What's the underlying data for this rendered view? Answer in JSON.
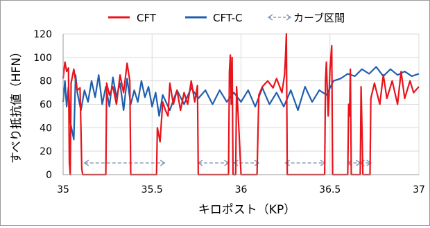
{
  "chart_data": {
    "type": "line",
    "xlabel": "キロポスト（KP）",
    "ylabel": "すべり抵抗値（HFN）",
    "xlim": [
      35,
      37
    ],
    "ylim": [
      0,
      120
    ],
    "x_ticks": [
      35,
      35.5,
      36,
      36.5,
      37
    ],
    "x_tick_labels": [
      "35",
      "35.5",
      "36",
      "36.5",
      "37"
    ],
    "y_ticks": [
      0,
      20,
      40,
      60,
      80,
      100,
      120
    ],
    "y_tick_labels": [
      "0",
      "20",
      "40",
      "60",
      "80",
      "100",
      "120"
    ],
    "grid": true,
    "legend_position": "top",
    "legend": [
      "CFT",
      "CFT-C",
      "カーブ区間"
    ],
    "series": [
      {
        "name": "CFT",
        "color": "#e8131b",
        "points": [
          [
            35.0,
            82
          ],
          [
            35.01,
            96
          ],
          [
            35.02,
            88
          ],
          [
            35.03,
            91
          ],
          [
            35.035,
            10
          ],
          [
            35.04,
            0
          ],
          [
            35.045,
            78
          ],
          [
            35.06,
            90
          ],
          [
            35.07,
            80
          ],
          [
            35.08,
            72
          ],
          [
            35.095,
            74
          ],
          [
            35.1,
            40
          ],
          [
            35.105,
            5
          ],
          [
            35.11,
            0
          ],
          [
            35.24,
            0
          ],
          [
            35.245,
            78
          ],
          [
            35.26,
            68
          ],
          [
            35.28,
            75
          ],
          [
            35.3,
            60
          ],
          [
            35.32,
            85
          ],
          [
            35.34,
            70
          ],
          [
            35.36,
            95
          ],
          [
            35.375,
            80
          ],
          [
            35.38,
            0
          ],
          [
            35.525,
            0
          ],
          [
            35.53,
            40
          ],
          [
            35.545,
            28
          ],
          [
            35.56,
            62
          ],
          [
            35.575,
            55
          ],
          [
            35.59,
            50
          ],
          [
            35.6,
            78
          ],
          [
            35.62,
            60
          ],
          [
            35.64,
            72
          ],
          [
            35.66,
            55
          ],
          [
            35.68,
            70
          ],
          [
            35.7,
            60
          ],
          [
            35.72,
            80
          ],
          [
            35.74,
            62
          ],
          [
            35.755,
            76
          ],
          [
            35.76,
            0
          ],
          [
            35.93,
            0
          ],
          [
            35.935,
            88
          ],
          [
            35.94,
            102
          ],
          [
            35.945,
            60
          ],
          [
            35.95,
            100
          ],
          [
            35.955,
            0
          ],
          [
            35.96,
            0
          ],
          [
            35.97,
            0
          ],
          [
            35.975,
            75
          ],
          [
            35.985,
            48
          ],
          [
            36.0,
            0
          ],
          [
            36.09,
            0
          ],
          [
            36.1,
            68
          ],
          [
            36.12,
            75
          ],
          [
            36.15,
            80
          ],
          [
            36.18,
            74
          ],
          [
            36.2,
            82
          ],
          [
            36.23,
            70
          ],
          [
            36.245,
            85
          ],
          [
            36.25,
            100
          ],
          [
            36.255,
            120
          ],
          [
            36.26,
            0
          ],
          [
            36.47,
            0
          ],
          [
            36.475,
            80
          ],
          [
            36.48,
            96
          ],
          [
            36.49,
            50
          ],
          [
            36.5,
            90
          ],
          [
            36.51,
            110
          ],
          [
            36.515,
            0
          ],
          [
            36.6,
            0
          ],
          [
            36.605,
            60
          ],
          [
            36.61,
            50
          ],
          [
            36.615,
            90
          ],
          [
            36.62,
            0
          ],
          [
            36.67,
            0
          ],
          [
            36.675,
            75
          ],
          [
            36.68,
            40
          ],
          [
            36.685,
            0
          ],
          [
            36.725,
            0
          ],
          [
            36.73,
            65
          ],
          [
            36.75,
            78
          ],
          [
            36.78,
            60
          ],
          [
            36.8,
            85
          ],
          [
            36.82,
            65
          ],
          [
            36.85,
            80
          ],
          [
            36.88,
            60
          ],
          [
            36.9,
            88
          ],
          [
            36.92,
            65
          ],
          [
            36.95,
            80
          ],
          [
            36.97,
            70
          ],
          [
            37.0,
            75
          ]
        ]
      },
      {
        "name": "CFT-C",
        "color": "#1f5fae",
        "points": [
          [
            35.0,
            62
          ],
          [
            35.01,
            80
          ],
          [
            35.02,
            58
          ],
          [
            35.03,
            75
          ],
          [
            35.04,
            45
          ],
          [
            35.06,
            30
          ],
          [
            35.07,
            85
          ],
          [
            35.08,
            70
          ],
          [
            35.1,
            55
          ],
          [
            35.12,
            72
          ],
          [
            35.14,
            62
          ],
          [
            35.16,
            80
          ],
          [
            35.18,
            66
          ],
          [
            35.2,
            85
          ],
          [
            35.22,
            60
          ],
          [
            35.24,
            75
          ],
          [
            35.26,
            58
          ],
          [
            35.28,
            83
          ],
          [
            35.3,
            66
          ],
          [
            35.32,
            78
          ],
          [
            35.34,
            55
          ],
          [
            35.36,
            82
          ],
          [
            35.38,
            60
          ],
          [
            35.4,
            72
          ],
          [
            35.42,
            62
          ],
          [
            35.44,
            80
          ],
          [
            35.46,
            66
          ],
          [
            35.48,
            75
          ],
          [
            35.5,
            58
          ],
          [
            35.52,
            70
          ],
          [
            35.54,
            50
          ],
          [
            35.56,
            68
          ],
          [
            35.6,
            55
          ],
          [
            35.64,
            72
          ],
          [
            35.68,
            60
          ],
          [
            35.72,
            74
          ],
          [
            35.76,
            65
          ],
          [
            35.8,
            72
          ],
          [
            35.84,
            60
          ],
          [
            35.88,
            72
          ],
          [
            35.92,
            62
          ],
          [
            35.96,
            70
          ],
          [
            36.0,
            62
          ],
          [
            36.04,
            72
          ],
          [
            36.08,
            58
          ],
          [
            36.12,
            74
          ],
          [
            36.16,
            60
          ],
          [
            36.2,
            70
          ],
          [
            36.24,
            58
          ],
          [
            36.28,
            72
          ],
          [
            36.32,
            55
          ],
          [
            36.36,
            75
          ],
          [
            36.4,
            62
          ],
          [
            36.44,
            72
          ],
          [
            36.48,
            68
          ],
          [
            36.52,
            80
          ],
          [
            36.56,
            82
          ],
          [
            36.6,
            86
          ],
          [
            36.64,
            84
          ],
          [
            36.68,
            90
          ],
          [
            36.72,
            86
          ],
          [
            36.76,
            92
          ],
          [
            36.8,
            84
          ],
          [
            36.84,
            90
          ],
          [
            36.88,
            85
          ],
          [
            36.92,
            88
          ],
          [
            36.96,
            84
          ],
          [
            37.0,
            86
          ]
        ]
      }
    ],
    "curve_sections": [
      {
        "from": 35.12,
        "to": 35.57
      },
      {
        "from": 35.76,
        "to": 35.93
      },
      {
        "from": 35.96,
        "to": 36.1
      },
      {
        "from": 36.25,
        "to": 36.47
      },
      {
        "from": 36.6,
        "to": 36.67
      },
      {
        "from": 36.67,
        "to": 36.73
      }
    ],
    "curve_section_color": "#8a9bb4",
    "axis_color": "#9a9a9a",
    "grid_color": "#d9d9d9"
  }
}
